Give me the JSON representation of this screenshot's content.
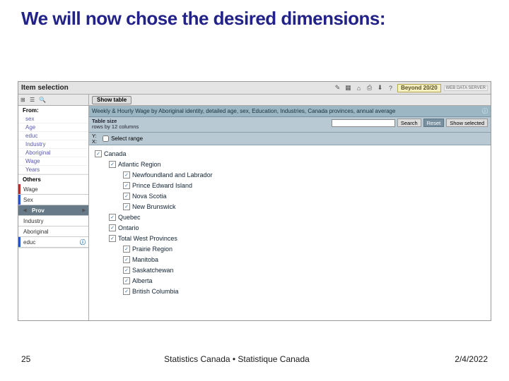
{
  "slide": {
    "title": "We will now chose the desired dimensions:",
    "page_number": "25",
    "footer_center": "Statistics Canada • Statistique Canada",
    "date": "2/4/2022"
  },
  "app": {
    "header_title": "Item selection",
    "beyond_label": "Beyond 20/20",
    "sub_badge": "WEB DATA SERVER",
    "show_table_label": "Show table",
    "breadcrumb": "Weekly & Hourly Wage by Aboriginal identity, detailed age, sex, Education, Industries, Canada provinces, annual average",
    "table_size_title": "Table size",
    "table_size_sub": "rows by 12 columns",
    "search_btn": "Search",
    "reset_btn": "Reset",
    "show_selected_btn": "Show selected",
    "select_range_label": "Select range",
    "axis_y": "Y:",
    "axis_x": "X:"
  },
  "left": {
    "from_label": "From:",
    "from_items": [
      {
        "label": "sex"
      },
      {
        "label": "Age"
      },
      {
        "label": "educ"
      },
      {
        "label": "Industry"
      },
      {
        "label": "Aboriginal"
      },
      {
        "label": "Wage"
      },
      {
        "label": "Years"
      }
    ],
    "others_label": "Others",
    "others": [
      {
        "label": "Wage",
        "marked": "#b03030"
      },
      {
        "label": "Sex",
        "marked": "#2a55c9"
      },
      {
        "label": "Prov",
        "selected": true
      },
      {
        "label": "Industry"
      },
      {
        "label": "Aboriginal"
      },
      {
        "label": "educ",
        "info": true,
        "marked": "#2a55c9"
      }
    ]
  },
  "tree": {
    "items": [
      {
        "label": "Canada",
        "indent": 0,
        "checked": true
      },
      {
        "label": "Atlantic Region",
        "indent": 1,
        "checked": true
      },
      {
        "label": "Newfoundland and Labrador",
        "indent": 2,
        "checked": true
      },
      {
        "label": "Prince Edward Island",
        "indent": 2,
        "checked": true
      },
      {
        "label": "Nova Scotia",
        "indent": 2,
        "checked": true
      },
      {
        "label": "New Brunswick",
        "indent": 2,
        "checked": true
      },
      {
        "label": "Quebec",
        "indent": 1,
        "checked": true
      },
      {
        "label": "Ontario",
        "indent": 1,
        "checked": true
      },
      {
        "label": "Total West Provinces",
        "indent": 1,
        "checked": true
      },
      {
        "label": "Prairie Region",
        "indent": 2,
        "checked": true
      },
      {
        "label": "Manitoba",
        "indent": 2,
        "checked": true
      },
      {
        "label": "Saskatchewan",
        "indent": 2,
        "checked": true
      },
      {
        "label": "Alberta",
        "indent": 2,
        "checked": true
      },
      {
        "label": "British Columbia",
        "indent": 2,
        "checked": true
      }
    ]
  },
  "colors": {
    "title_color": "#222288",
    "panel_blue": "#9db6c4",
    "panel_blue2": "#b8c9d3",
    "selected_row": "#667a88"
  }
}
